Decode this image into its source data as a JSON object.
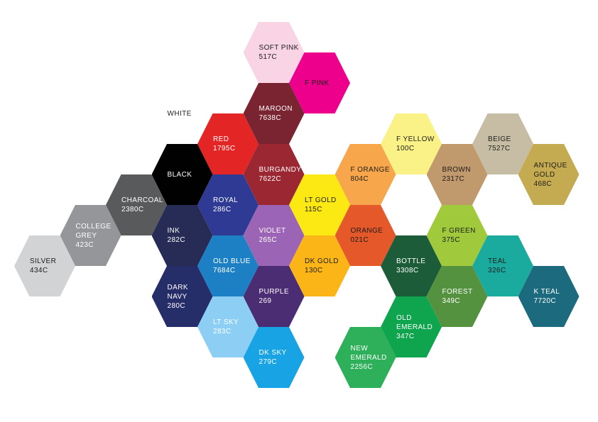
{
  "title": "Hexagonal Pantone colour swatch chart",
  "background_color": "#ffffff",
  "label_text_dark": "#1d1d1b",
  "label_text_light": "#ffffff",
  "hexagons": [
    {
      "name": "SOFT PINK",
      "code": "517C",
      "col": 5,
      "row": 0,
      "fill": "#f8d4e5",
      "text_color": "#1d1d1b"
    },
    {
      "name": "F PINK",
      "code": "",
      "col": 6,
      "row": 1,
      "fill": "#ec008c",
      "text_color": "#1d1d1b"
    },
    {
      "name": "WHITE",
      "code": "",
      "col": 3,
      "row": 2,
      "fill": "#ffffff",
      "text_color": "#1d1d1b"
    },
    {
      "name": "MAROON",
      "code": "7638C",
      "col": 5,
      "row": 2,
      "fill": "#7a2431",
      "text_color": "#ffffff"
    },
    {
      "name": "RED",
      "code": "1795C",
      "col": 4,
      "row": 3,
      "fill": "#e32526",
      "text_color": "#ffffff"
    },
    {
      "name": "F YELLOW",
      "code": "100C",
      "col": 8,
      "row": 3,
      "fill": "#faf287",
      "text_color": "#1d1d1b"
    },
    {
      "name": "BEIGE",
      "code": "7527C",
      "col": 10,
      "row": 3,
      "fill": "#c6bda4",
      "text_color": "#1d1d1b"
    },
    {
      "name": "BLACK",
      "code": "",
      "col": 3,
      "row": 4,
      "fill": "#010101",
      "text_color": "#ffffff"
    },
    {
      "name": "BURGANDY",
      "code": "7622C",
      "col": 5,
      "row": 4,
      "fill": "#9b2732",
      "text_color": "#ffffff"
    },
    {
      "name": "F ORANGE",
      "code": "804C",
      "col": 7,
      "row": 4,
      "fill": "#f8a64c",
      "text_color": "#1d1d1b"
    },
    {
      "name": "BROWN",
      "code": "2317C",
      "col": 9,
      "row": 4,
      "fill": "#c0996c",
      "text_color": "#1d1d1b"
    },
    {
      "name": "ANTIQUE\nGOLD",
      "code": "468C",
      "col": 11,
      "row": 4,
      "fill": "#c4aa50",
      "text_color": "#1d1d1b"
    },
    {
      "name": "CHARCOAL",
      "code": "2380C",
      "col": 2,
      "row": 5,
      "fill": "#595a5c",
      "text_color": "#ffffff"
    },
    {
      "name": "ROYAL",
      "code": "286C",
      "col": 4,
      "row": 5,
      "fill": "#2e3a94",
      "text_color": "#ffffff"
    },
    {
      "name": "LT GOLD",
      "code": "115C",
      "col": 6,
      "row": 5,
      "fill": "#fce913",
      "text_color": "#1d1d1b"
    },
    {
      "name": "COLLEGE\nGREY",
      "code": "423C",
      "col": 1,
      "row": 6,
      "fill": "#949699",
      "text_color": "#ffffff"
    },
    {
      "name": "INK",
      "code": "282C",
      "col": 3,
      "row": 6,
      "fill": "#262c55",
      "text_color": "#ffffff"
    },
    {
      "name": "VIOLET",
      "code": "265C",
      "col": 5,
      "row": 6,
      "fill": "#9c64b4",
      "text_color": "#ffffff"
    },
    {
      "name": "ORANGE",
      "code": "021C",
      "col": 7,
      "row": 6,
      "fill": "#e5582a",
      "text_color": "#1d1d1b"
    },
    {
      "name": "F GREEN",
      "code": "375C",
      "col": 9,
      "row": 6,
      "fill": "#a0ca3c",
      "text_color": "#1d1d1b"
    },
    {
      "name": "SILVER",
      "code": "434C",
      "col": 0,
      "row": 7,
      "fill": "#d1d3d4",
      "text_color": "#1d1d1b"
    },
    {
      "name": "OLD BLUE",
      "code": "7684C",
      "col": 4,
      "row": 7,
      "fill": "#1d80c5",
      "text_color": "#ffffff"
    },
    {
      "name": "DK GOLD",
      "code": "130C",
      "col": 6,
      "row": 7,
      "fill": "#fbb517",
      "text_color": "#1d1d1b"
    },
    {
      "name": "BOTTLE",
      "code": "3308C",
      "col": 8,
      "row": 7,
      "fill": "#1c5c38",
      "text_color": "#ffffff"
    },
    {
      "name": "TEAL",
      "code": "326C",
      "col": 10,
      "row": 7,
      "fill": "#1baa9e",
      "text_color": "#1d1d1b"
    },
    {
      "name": "DARK NAVY",
      "code": "280C",
      "col": 3,
      "row": 8,
      "fill": "#252e68",
      "text_color": "#ffffff"
    },
    {
      "name": "PURPLE",
      "code": "269",
      "col": 5,
      "row": 8,
      "fill": "#4b2d73",
      "text_color": "#ffffff"
    },
    {
      "name": "FOREST",
      "code": "349C",
      "col": 9,
      "row": 8,
      "fill": "#55923f",
      "text_color": "#ffffff"
    },
    {
      "name": "K TEAL",
      "code": "7720C",
      "col": 11,
      "row": 8,
      "fill": "#1b6a7e",
      "text_color": "#ffffff"
    },
    {
      "name": "LT SKY",
      "code": "283C",
      "col": 4,
      "row": 9,
      "fill": "#8ccef4",
      "text_color": "#ffffff"
    },
    {
      "name": "OLD\nEMERALD",
      "code": "347C",
      "col": 8,
      "row": 9,
      "fill": "#0fa44e",
      "text_color": "#ffffff"
    },
    {
      "name": "DK SKY",
      "code": "279C",
      "col": 5,
      "row": 10,
      "fill": "#17a3e4",
      "text_color": "#ffffff"
    },
    {
      "name": "NEW\nEMERALD",
      "code": "2256C",
      "col": 7,
      "row": 10,
      "fill": "#2eb05a",
      "text_color": "#ffffff"
    }
  ]
}
